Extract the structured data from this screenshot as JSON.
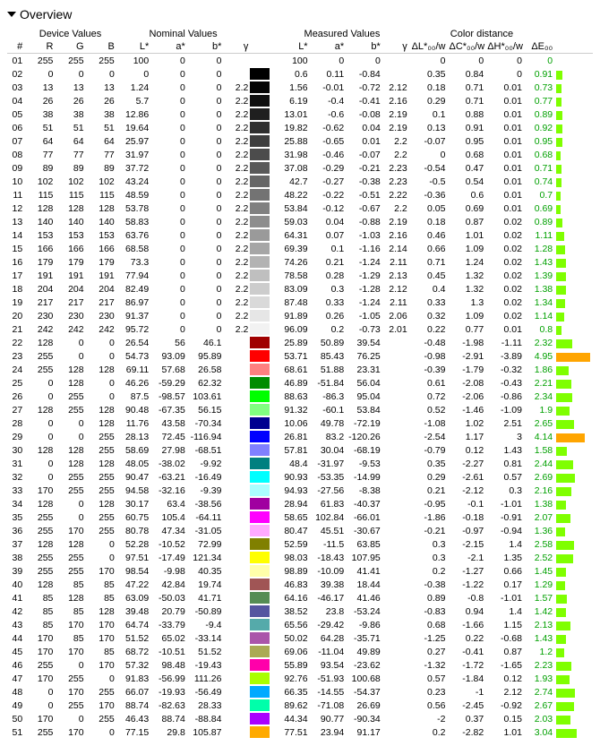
{
  "title": "Overview",
  "header_groups": [
    "Device Values",
    "Nominal Values",
    "Measured Values",
    "Color distance"
  ],
  "columns": [
    "#",
    "R",
    "G",
    "B",
    "L*",
    "a*",
    "b*",
    "γ",
    "",
    "L*",
    "a*",
    "b*",
    "γ",
    "ΔL*₀₀/w",
    "ΔC*₀₀/w",
    "ΔH*₀₀/w",
    "ΔE₀₀",
    ""
  ],
  "bar_max": 5.0,
  "colors": {
    "de_text": "#00a000",
    "bar_green": "#7fff00",
    "bar_orange": "#ffa500"
  },
  "rows": [
    {
      "n": "01",
      "r": 255,
      "g": 255,
      "b": 255,
      "L": 100,
      "a": 0,
      "b2": 0,
      "gamma": "",
      "swatch": "#ffffff",
      "mL": 100,
      "ma": 0,
      "mb": 0,
      "mg": "",
      "dL": 0,
      "dC": 0,
      "dH": 0,
      "dE": 0
    },
    {
      "n": "02",
      "r": 0,
      "g": 0,
      "b": 0,
      "L": 0,
      "a": 0,
      "b2": 0,
      "gamma": "",
      "swatch": "#000000",
      "mL": 0.6,
      "ma": 0.11,
      "mb": -0.84,
      "mg": "",
      "dL": 0.35,
      "dC": 0.84,
      "dH": 0,
      "dE": 0.91
    },
    {
      "n": "03",
      "r": 13,
      "g": 13,
      "b": 13,
      "L": 1.24,
      "a": 0,
      "b2": 0,
      "gamma": 2.2,
      "swatch": "#050505",
      "mL": 1.56,
      "ma": -0.01,
      "mb": -0.72,
      "mg": 2.12,
      "dL": 0.18,
      "dC": 0.71,
      "dH": 0.01,
      "dE": 0.73
    },
    {
      "n": "04",
      "r": 26,
      "g": 26,
      "b": 26,
      "L": 5.7,
      "a": 0,
      "b2": 0,
      "gamma": 2.2,
      "swatch": "#0f0f0f",
      "mL": 6.19,
      "ma": -0.4,
      "mb": -0.41,
      "mg": 2.16,
      "dL": 0.29,
      "dC": 0.71,
      "dH": 0.01,
      "dE": 0.77
    },
    {
      "n": "05",
      "r": 38,
      "g": 38,
      "b": 38,
      "L": 12.86,
      "a": 0,
      "b2": 0,
      "gamma": 2.2,
      "swatch": "#1f1f1f",
      "mL": 13.01,
      "ma": -0.6,
      "mb": -0.08,
      "mg": 2.19,
      "dL": 0.1,
      "dC": 0.88,
      "dH": 0.01,
      "dE": 0.89
    },
    {
      "n": "06",
      "r": 51,
      "g": 51,
      "b": 51,
      "L": 19.64,
      "a": 0,
      "b2": 0,
      "gamma": 2.2,
      "swatch": "#2f2f2f",
      "mL": 19.82,
      "ma": -0.62,
      "mb": 0.04,
      "mg": 2.19,
      "dL": 0.13,
      "dC": 0.91,
      "dH": 0.01,
      "dE": 0.92
    },
    {
      "n": "07",
      "r": 64,
      "g": 64,
      "b": 64,
      "L": 25.97,
      "a": 0,
      "b2": 0,
      "gamma": 2.2,
      "swatch": "#3e3e3e",
      "mL": 25.88,
      "ma": -0.65,
      "mb": 0.01,
      "mg": 2.2,
      "dL": -0.07,
      "dC": 0.95,
      "dH": 0.01,
      "dE": 0.95
    },
    {
      "n": "08",
      "r": 77,
      "g": 77,
      "b": 77,
      "L": 31.97,
      "a": 0,
      "b2": 0,
      "gamma": 2.2,
      "swatch": "#4c4c4c",
      "mL": 31.98,
      "ma": -0.46,
      "mb": -0.07,
      "mg": 2.2,
      "dL": 0,
      "dC": 0.68,
      "dH": 0.01,
      "dE": 0.68
    },
    {
      "n": "09",
      "r": 89,
      "g": 89,
      "b": 89,
      "L": 37.72,
      "a": 0,
      "b2": 0,
      "gamma": 2.2,
      "swatch": "#595959",
      "mL": 37.08,
      "ma": -0.29,
      "mb": -0.21,
      "mg": 2.23,
      "dL": -0.54,
      "dC": 0.47,
      "dH": 0.01,
      "dE": 0.71
    },
    {
      "n": "10",
      "r": 102,
      "g": 102,
      "b": 102,
      "L": 43.24,
      "a": 0,
      "b2": 0,
      "gamma": 2.2,
      "swatch": "#666666",
      "mL": 42.7,
      "ma": -0.27,
      "mb": -0.38,
      "mg": 2.23,
      "dL": -0.5,
      "dC": 0.54,
      "dH": 0.01,
      "dE": 0.74
    },
    {
      "n": "11",
      "r": 115,
      "g": 115,
      "b": 115,
      "L": 48.59,
      "a": 0,
      "b2": 0,
      "gamma": 2.2,
      "swatch": "#737373",
      "mL": 48.22,
      "ma": -0.22,
      "mb": -0.51,
      "mg": 2.22,
      "dL": -0.36,
      "dC": 0.6,
      "dH": 0.01,
      "dE": 0.7
    },
    {
      "n": "12",
      "r": 128,
      "g": 128,
      "b": 128,
      "L": 53.78,
      "a": 0,
      "b2": 0,
      "gamma": 2.2,
      "swatch": "#808080",
      "mL": 53.84,
      "ma": -0.12,
      "mb": -0.67,
      "mg": 2.2,
      "dL": 0.05,
      "dC": 0.69,
      "dH": 0.01,
      "dE": 0.69
    },
    {
      "n": "13",
      "r": 140,
      "g": 140,
      "b": 140,
      "L": 58.83,
      "a": 0,
      "b2": 0,
      "gamma": 2.2,
      "swatch": "#8d8d8d",
      "mL": 59.03,
      "ma": 0.04,
      "mb": -0.88,
      "mg": 2.19,
      "dL": 0.18,
      "dC": 0.87,
      "dH": 0.02,
      "dE": 0.89
    },
    {
      "n": "14",
      "r": 153,
      "g": 153,
      "b": 153,
      "L": 63.76,
      "a": 0,
      "b2": 0,
      "gamma": 2.2,
      "swatch": "#9a9a9a",
      "mL": 64.31,
      "ma": 0.07,
      "mb": -1.03,
      "mg": 2.16,
      "dL": 0.46,
      "dC": 1.01,
      "dH": 0.02,
      "dE": 1.11
    },
    {
      "n": "15",
      "r": 166,
      "g": 166,
      "b": 166,
      "L": 68.58,
      "a": 0,
      "b2": 0,
      "gamma": 2.2,
      "swatch": "#a6a6a6",
      "mL": 69.39,
      "ma": 0.1,
      "mb": -1.16,
      "mg": 2.14,
      "dL": 0.66,
      "dC": 1.09,
      "dH": 0.02,
      "dE": 1.28
    },
    {
      "n": "16",
      "r": 179,
      "g": 179,
      "b": 179,
      "L": 73.3,
      "a": 0,
      "b2": 0,
      "gamma": 2.2,
      "swatch": "#b3b3b3",
      "mL": 74.26,
      "ma": 0.21,
      "mb": -1.24,
      "mg": 2.11,
      "dL": 0.71,
      "dC": 1.24,
      "dH": 0.02,
      "dE": 1.43
    },
    {
      "n": "17",
      "r": 191,
      "g": 191,
      "b": 191,
      "L": 77.94,
      "a": 0,
      "b2": 0,
      "gamma": 2.2,
      "swatch": "#bfbfbf",
      "mL": 78.58,
      "ma": 0.28,
      "mb": -1.29,
      "mg": 2.13,
      "dL": 0.45,
      "dC": 1.32,
      "dH": 0.02,
      "dE": 1.39
    },
    {
      "n": "18",
      "r": 204,
      "g": 204,
      "b": 204,
      "L": 82.49,
      "a": 0,
      "b2": 0,
      "gamma": 2.2,
      "swatch": "#cccccc",
      "mL": 83.09,
      "ma": 0.3,
      "mb": -1.28,
      "mg": 2.12,
      "dL": 0.4,
      "dC": 1.32,
      "dH": 0.02,
      "dE": 1.38
    },
    {
      "n": "19",
      "r": 217,
      "g": 217,
      "b": 217,
      "L": 86.97,
      "a": 0,
      "b2": 0,
      "gamma": 2.2,
      "swatch": "#d9d9d9",
      "mL": 87.48,
      "ma": 0.33,
      "mb": -1.24,
      "mg": 2.11,
      "dL": 0.33,
      "dC": 1.3,
      "dH": 0.02,
      "dE": 1.34
    },
    {
      "n": "20",
      "r": 230,
      "g": 230,
      "b": 230,
      "L": 91.37,
      "a": 0,
      "b2": 0,
      "gamma": 2.2,
      "swatch": "#e6e6e6",
      "mL": 91.89,
      "ma": 0.26,
      "mb": -1.05,
      "mg": 2.06,
      "dL": 0.32,
      "dC": 1.09,
      "dH": 0.02,
      "dE": 1.14
    },
    {
      "n": "21",
      "r": 242,
      "g": 242,
      "b": 242,
      "L": 95.72,
      "a": 0,
      "b2": 0,
      "gamma": 2.2,
      "swatch": "#f2f2f2",
      "mL": 96.09,
      "ma": 0.2,
      "mb": -0.73,
      "mg": 2.01,
      "dL": 0.22,
      "dC": 0.77,
      "dH": 0.01,
      "dE": 0.8
    },
    {
      "n": "22",
      "r": 128,
      "g": 0,
      "b": 0,
      "L": 26.54,
      "a": 56,
      "b2": 46.1,
      "gamma": "",
      "swatch": "#a00000",
      "mL": 25.89,
      "ma": 50.89,
      "mb": 39.54,
      "mg": "",
      "dL": -0.48,
      "dC": -1.98,
      "dH": -1.11,
      "dE": 2.32
    },
    {
      "n": "23",
      "r": 255,
      "g": 0,
      "b": 0,
      "L": 54.73,
      "a": 93.09,
      "b2": 95.89,
      "gamma": "",
      "swatch": "#ff0000",
      "mL": 53.71,
      "ma": 85.43,
      "mb": 76.25,
      "mg": "",
      "dL": -0.98,
      "dC": -2.91,
      "dH": -3.89,
      "dE": 4.95,
      "barColor": "orange"
    },
    {
      "n": "24",
      "r": 255,
      "g": 128,
      "b": 128,
      "L": 69.11,
      "a": 57.68,
      "b2": 26.58,
      "gamma": "",
      "swatch": "#ff8080",
      "mL": 68.61,
      "ma": 51.88,
      "mb": 23.31,
      "mg": "",
      "dL": -0.39,
      "dC": -1.79,
      "dH": -0.32,
      "dE": 1.86
    },
    {
      "n": "25",
      "r": 0,
      "g": 128,
      "b": 0,
      "L": 46.26,
      "a": -59.29,
      "b2": 62.32,
      "gamma": "",
      "swatch": "#008c00",
      "mL": 46.89,
      "ma": -51.84,
      "mb": 56.04,
      "mg": "",
      "dL": 0.61,
      "dC": -2.08,
      "dH": -0.43,
      "dE": 2.21
    },
    {
      "n": "26",
      "r": 0,
      "g": 255,
      "b": 0,
      "L": 87.5,
      "a": -98.57,
      "b2": 103.61,
      "gamma": "",
      "swatch": "#00ff00",
      "mL": 88.63,
      "ma": -86.3,
      "mb": 95.04,
      "mg": "",
      "dL": 0.72,
      "dC": -2.06,
      "dH": -0.86,
      "dE": 2.34
    },
    {
      "n": "27",
      "r": 128,
      "g": 255,
      "b": 128,
      "L": 90.48,
      "a": -67.35,
      "b2": 56.15,
      "gamma": "",
      "swatch": "#80ff80",
      "mL": 91.32,
      "ma": -60.1,
      "mb": 53.84,
      "mg": "",
      "dL": 0.52,
      "dC": -1.46,
      "dH": -1.09,
      "dE": 1.9
    },
    {
      "n": "28",
      "r": 0,
      "g": 0,
      "b": 128,
      "L": 11.76,
      "a": 43.58,
      "b2": -70.34,
      "gamma": "",
      "swatch": "#000090",
      "mL": 10.06,
      "ma": 49.78,
      "mb": -72.19,
      "mg": "",
      "dL": -1.08,
      "dC": 1.02,
      "dH": 2.51,
      "dE": 2.65
    },
    {
      "n": "29",
      "r": 0,
      "g": 0,
      "b": 255,
      "L": 28.13,
      "a": 72.45,
      "b2": -116.94,
      "gamma": "",
      "swatch": "#0000ff",
      "mL": 26.81,
      "ma": 83.2,
      "mb": -120.26,
      "mg": "",
      "dL": -2.54,
      "dC": 1.17,
      "dH": 3,
      "dE": 4.14,
      "barColor": "orange"
    },
    {
      "n": "30",
      "r": 128,
      "g": 128,
      "b": 255,
      "L": 58.69,
      "a": 27.98,
      "b2": -68.51,
      "gamma": "",
      "swatch": "#8080ff",
      "mL": 57.81,
      "ma": 30.04,
      "mb": -68.19,
      "mg": "",
      "dL": -0.79,
      "dC": 0.12,
      "dH": 1.43,
      "dE": 1.58
    },
    {
      "n": "31",
      "r": 0,
      "g": 128,
      "b": 128,
      "L": 48.05,
      "a": -38.02,
      "b2": -9.92,
      "gamma": "",
      "swatch": "#008080",
      "mL": 48.4,
      "ma": -31.97,
      "mb": -9.53,
      "mg": "",
      "dL": 0.35,
      "dC": -2.27,
      "dH": 0.81,
      "dE": 2.44
    },
    {
      "n": "32",
      "r": 0,
      "g": 255,
      "b": 255,
      "L": 90.47,
      "a": -63.21,
      "b2": -16.49,
      "gamma": "",
      "swatch": "#00ffff",
      "mL": 90.93,
      "ma": -53.35,
      "mb": -14.99,
      "mg": "",
      "dL": 0.29,
      "dC": -2.61,
      "dH": 0.57,
      "dE": 2.69
    },
    {
      "n": "33",
      "r": 170,
      "g": 255,
      "b": 255,
      "L": 94.58,
      "a": -32.16,
      "b2": -9.39,
      "gamma": "",
      "swatch": "#aaffff",
      "mL": 94.93,
      "ma": -27.56,
      "mb": -8.38,
      "mg": "",
      "dL": 0.21,
      "dC": -2.12,
      "dH": 0.3,
      "dE": 2.16
    },
    {
      "n": "34",
      "r": 128,
      "g": 0,
      "b": 128,
      "L": 30.17,
      "a": 63.4,
      "b2": -38.56,
      "gamma": "",
      "swatch": "#a000a0",
      "mL": 28.94,
      "ma": 61.83,
      "mb": -40.37,
      "mg": "",
      "dL": -0.95,
      "dC": -0.1,
      "dH": -1.01,
      "dE": 1.38
    },
    {
      "n": "35",
      "r": 255,
      "g": 0,
      "b": 255,
      "L": 60.75,
      "a": 105.4,
      "b2": -64.11,
      "gamma": "",
      "swatch": "#ff00ff",
      "mL": 58.65,
      "ma": 102.84,
      "mb": -66.01,
      "mg": "",
      "dL": -1.86,
      "dC": -0.18,
      "dH": -0.91,
      "dE": 2.07
    },
    {
      "n": "36",
      "r": 255,
      "g": 170,
      "b": 255,
      "L": 80.78,
      "a": 47.34,
      "b2": -31.05,
      "gamma": "",
      "swatch": "#ffaaff",
      "mL": 80.47,
      "ma": 45.51,
      "mb": -30.67,
      "mg": "",
      "dL": -0.21,
      "dC": -0.97,
      "dH": -0.94,
      "dE": 1.36
    },
    {
      "n": "37",
      "r": 128,
      "g": 128,
      "b": 0,
      "L": 52.28,
      "a": -10.52,
      "b2": 72.99,
      "gamma": "",
      "swatch": "#808000",
      "mL": 52.59,
      "ma": -11.5,
      "mb": 63.85,
      "mg": "",
      "dL": 0.3,
      "dC": -2.15,
      "dH": 1.4,
      "dE": 2.58
    },
    {
      "n": "38",
      "r": 255,
      "g": 255,
      "b": 0,
      "L": 97.51,
      "a": -17.49,
      "b2": 121.34,
      "gamma": "",
      "swatch": "#ffff00",
      "mL": 98.03,
      "ma": -18.43,
      "mb": 107.95,
      "mg": "",
      "dL": 0.3,
      "dC": -2.1,
      "dH": 1.35,
      "dE": 2.52
    },
    {
      "n": "39",
      "r": 255,
      "g": 255,
      "b": 170,
      "L": 98.54,
      "a": -9.98,
      "b2": 40.35,
      "gamma": "",
      "swatch": "#ffffaa",
      "mL": 98.89,
      "ma": -10.09,
      "mb": 41.41,
      "mg": "",
      "dL": 0.2,
      "dC": -1.27,
      "dH": 0.66,
      "dE": 1.45
    },
    {
      "n": "40",
      "r": 128,
      "g": 85,
      "b": 85,
      "L": 47.22,
      "a": 42.84,
      "b2": 19.74,
      "gamma": "",
      "swatch": "#a05555",
      "mL": 46.83,
      "ma": 39.38,
      "mb": 18.44,
      "mg": "",
      "dL": -0.38,
      "dC": -1.22,
      "dH": 0.17,
      "dE": 1.29
    },
    {
      "n": "41",
      "r": 85,
      "g": 128,
      "b": 85,
      "L": 63.09,
      "a": -50.03,
      "b2": 41.71,
      "gamma": "",
      "swatch": "#558c55",
      "mL": 64.16,
      "ma": -46.17,
      "mb": 41.46,
      "mg": "",
      "dL": 0.89,
      "dC": -0.8,
      "dH": -1.01,
      "dE": 1.57
    },
    {
      "n": "42",
      "r": 85,
      "g": 85,
      "b": 128,
      "L": 39.48,
      "a": 20.79,
      "b2": -50.89,
      "gamma": "",
      "swatch": "#5555a0",
      "mL": 38.52,
      "ma": 23.8,
      "mb": -53.24,
      "mg": "",
      "dL": -0.83,
      "dC": 0.94,
      "dH": 1.4,
      "dE": 1.42
    },
    {
      "n": "43",
      "r": 85,
      "g": 170,
      "b": 170,
      "L": 64.74,
      "a": -33.79,
      "b2": -9.4,
      "gamma": "",
      "swatch": "#55aaaa",
      "mL": 65.56,
      "ma": -29.42,
      "mb": -9.86,
      "mg": "",
      "dL": 0.68,
      "dC": -1.66,
      "dH": 1.15,
      "dE": 2.13
    },
    {
      "n": "44",
      "r": 170,
      "g": 85,
      "b": 170,
      "L": 51.52,
      "a": 65.02,
      "b2": -33.14,
      "gamma": "",
      "swatch": "#aa55aa",
      "mL": 50.02,
      "ma": 64.28,
      "mb": -35.71,
      "mg": "",
      "dL": -1.25,
      "dC": 0.22,
      "dH": -0.68,
      "dE": 1.43
    },
    {
      "n": "45",
      "r": 170,
      "g": 170,
      "b": 85,
      "L": 68.72,
      "a": -10.51,
      "b2": 51.52,
      "gamma": "",
      "swatch": "#aaaa55",
      "mL": 69.06,
      "ma": -11.04,
      "mb": 49.89,
      "mg": "",
      "dL": 0.27,
      "dC": -0.41,
      "dH": 0.87,
      "dE": 1.2
    },
    {
      "n": "46",
      "r": 255,
      "g": 0,
      "b": 170,
      "L": 57.32,
      "a": 98.48,
      "b2": -19.43,
      "gamma": "",
      "swatch": "#ff00aa",
      "mL": 55.89,
      "ma": 93.54,
      "mb": -23.62,
      "mg": "",
      "dL": -1.32,
      "dC": -1.72,
      "dH": -1.65,
      "dE": 2.23
    },
    {
      "n": "47",
      "r": 170,
      "g": 255,
      "b": 0,
      "L": 91.83,
      "a": -56.99,
      "b2": 111.26,
      "gamma": "",
      "swatch": "#aaff00",
      "mL": 92.76,
      "ma": -51.93,
      "mb": 100.68,
      "mg": "",
      "dL": 0.57,
      "dC": -1.84,
      "dH": 0.12,
      "dE": 1.93
    },
    {
      "n": "48",
      "r": 0,
      "g": 170,
      "b": 255,
      "L": 66.07,
      "a": -19.93,
      "b2": -56.49,
      "gamma": "",
      "swatch": "#00aaff",
      "mL": 66.35,
      "ma": -14.55,
      "mb": -54.37,
      "mg": "",
      "dL": 0.23,
      "dC": -1,
      "dH": 2.12,
      "dE": 2.74
    },
    {
      "n": "49",
      "r": 0,
      "g": 255,
      "b": 170,
      "L": 88.74,
      "a": -82.63,
      "b2": 28.33,
      "gamma": "",
      "swatch": "#00ffaa",
      "mL": 89.62,
      "ma": -71.08,
      "mb": 26.69,
      "mg": "",
      "dL": 0.56,
      "dC": -2.45,
      "dH": -0.92,
      "dE": 2.67
    },
    {
      "n": "50",
      "r": 170,
      "g": 0,
      "b": 255,
      "L": 46.43,
      "a": 88.74,
      "b2": -88.84,
      "gamma": "",
      "swatch": "#aa00ff",
      "mL": 44.34,
      "ma": 90.77,
      "mb": -90.34,
      "mg": "",
      "dL": -2,
      "dC": 0.37,
      "dH": 0.15,
      "dE": 2.03
    },
    {
      "n": "51",
      "r": 255,
      "g": 170,
      "b": 0,
      "L": 77.15,
      "a": 29.8,
      "b2": 105.87,
      "gamma": "",
      "swatch": "#ffaa00",
      "mL": 77.51,
      "ma": 23.94,
      "mb": 91.17,
      "mg": "",
      "dL": 0.2,
      "dC": -2.82,
      "dH": 1.01,
      "dE": 3.04
    }
  ]
}
